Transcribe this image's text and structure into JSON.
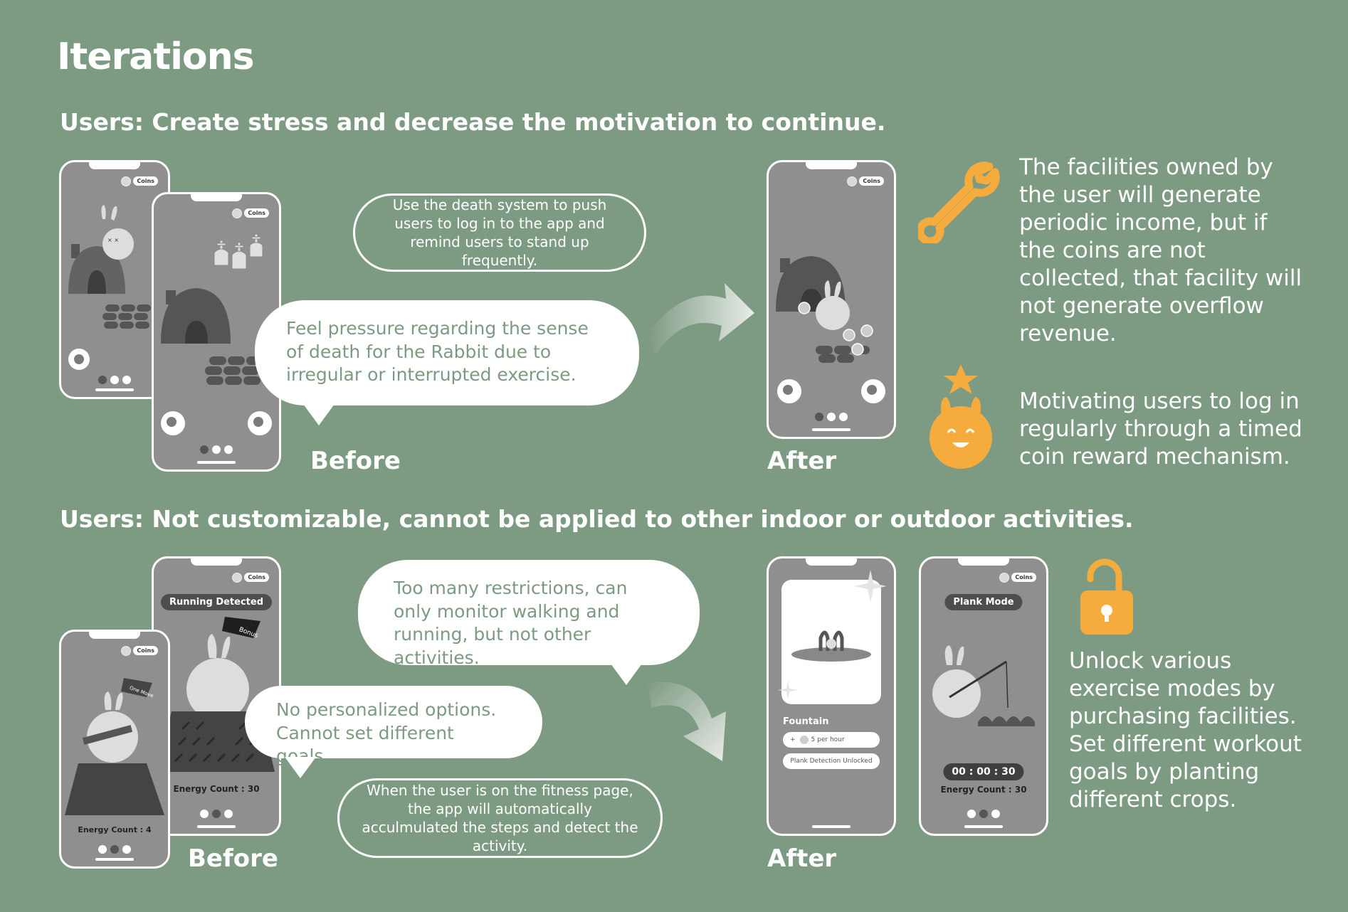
{
  "title": "Iterations",
  "section1": {
    "heading": "Users: Create stress and decrease the motivation to continue.",
    "outline_note": "Use the death system to push users to log in to the app and remind users to stand up frequently.",
    "bubble": "Feel pressure regarding the sense of death for the Rabbit due to irregular or interrupted exercise.",
    "before_label": "Before",
    "after_label": "After",
    "coins_label": "Coins",
    "side_text_1": "The facilities owned by the user will generate periodic income, but if the coins are not collected, that facility will not generate overflow revenue.",
    "side_text_2": "Motivating users to log in regularly through a timed coin reward mechanism.",
    "wrench_icon": "wrench-icon",
    "mascot_icon": "rabbit-mascot-icon"
  },
  "section2": {
    "heading": "Users: Not customizable, cannot be applied to other indoor or outdoor activities.",
    "bubble_1": "Too many restrictions, can only monitor walking and running, but not other activities.",
    "bubble_2": "No personalized options. Cannot set different goals.",
    "outline_note": "When the user is on the fitness page, the app will automatically acculmulated the steps and detect the activity.",
    "before_label": "Before",
    "after_label": "After",
    "running_detected": "Running Detected",
    "bonus": "Bonus",
    "one_move": "One Move",
    "energy_30": "Energy Count : 30",
    "energy_4": "Energy Count : 4",
    "fountain": "Fountain",
    "per_hour": "5 per hour",
    "plank_unlocked": "Plank Detection Unlocked",
    "plank_mode": "Plank Mode",
    "timer": "00 : 00 : 30",
    "side_text": "Unlock various exercise modes by purchasing facilities. Set different workout goals by planting different crops.",
    "lock_icon": "unlock-icon"
  },
  "colors": {
    "background": "#7d9a82",
    "accent": "#f5ac3c",
    "phone": "#8f8f8f"
  }
}
